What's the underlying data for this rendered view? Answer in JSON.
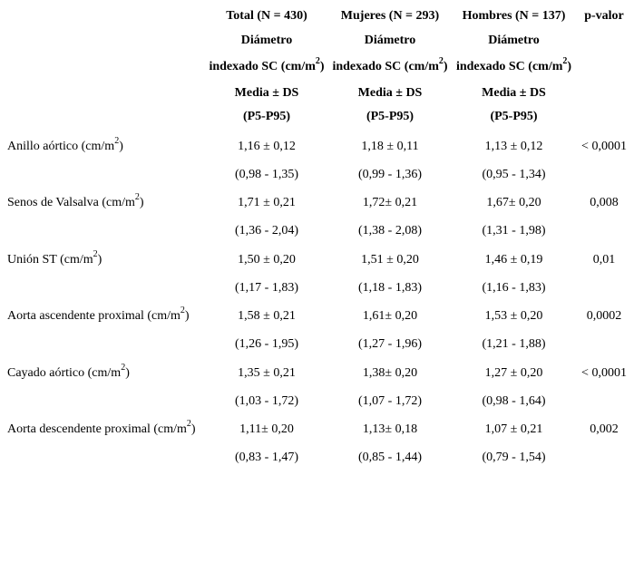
{
  "table": {
    "header": {
      "columns": [
        {
          "title": "Total (N = 430)"
        },
        {
          "title": "Mujeres (N = 293)"
        },
        {
          "title": "Hombres (N = 137)"
        },
        {
          "title": "p-valor"
        }
      ],
      "sub": {
        "diametro": "Diámetro",
        "indexado_pre": "indexado SC (cm/m",
        "indexado_sup": "2",
        "indexado_post": ")",
        "media": "Media ± DS",
        "p5p95": "(P5-P95)"
      }
    },
    "rows": [
      {
        "label_pre": "Anillo aórtico (cm/m",
        "label_sup": "2",
        "label_post": ")",
        "total_mean": "1,16 ± 0,12",
        "mujeres_mean": "1,18 ± 0,11",
        "hombres_mean": "1,13 ± 0,12",
        "p": "< 0,0001",
        "total_range": "(0,98 - 1,35)",
        "mujeres_range": "(0,99 - 1,36)",
        "hombres_range": "(0,95 - 1,34)"
      },
      {
        "label_pre": "Senos de Valsalva (cm/m",
        "label_sup": "2",
        "label_post": ")",
        "total_mean": "1,71 ± 0,21",
        "mujeres_mean": "1,72± 0,21",
        "hombres_mean": "1,67± 0,20",
        "p": "0,008",
        "total_range": "(1,36 - 2,04)",
        "mujeres_range": "(1,38 - 2,08)",
        "hombres_range": "(1,31 - 1,98)"
      },
      {
        "label_pre": "Unión ST (cm/m",
        "label_sup": "2",
        "label_post": ")",
        "total_mean": "1,50 ± 0,20",
        "mujeres_mean": "1,51 ± 0,20",
        "hombres_mean": "1,46 ± 0,19",
        "p": "0,01",
        "total_range": "(1,17 - 1,83)",
        "mujeres_range": "(1,18 - 1,83)",
        "hombres_range": "(1,16 - 1,83)"
      },
      {
        "label_pre": "Aorta ascendente proximal (cm/m",
        "label_sup": "2",
        "label_post": ")",
        "total_mean": "1,58 ± 0,21",
        "mujeres_mean": "1,61± 0,20",
        "hombres_mean": "1,53 ± 0,20",
        "p": "0,0002",
        "total_range": "(1,26 - 1,95)",
        "mujeres_range": "(1,27 - 1,96)",
        "hombres_range": "(1,21 - 1,88)"
      },
      {
        "label_pre": "Cayado aórtico (cm/m",
        "label_sup": "2",
        "label_post": ")",
        "total_mean": "1,35 ± 0,21",
        "mujeres_mean": "1,38± 0,20",
        "hombres_mean": "1,27 ± 0,20",
        "p": "< 0,0001",
        "total_range": "(1,03 - 1,72)",
        "mujeres_range": "(1,07 - 1,72)",
        "hombres_range": "(0,98 - 1,64)"
      },
      {
        "label_pre": "Aorta descendente proximal (cm/m",
        "label_sup": "2",
        "label_post": ")",
        "total_mean": "1,11± 0,20",
        "mujeres_mean": "1,13± 0,18",
        "hombres_mean": "1,07 ± 0,21",
        "p": "0,002",
        "total_range": "(0,83 - 1,47)",
        "mujeres_range": "(0,85 - 1,44)",
        "hombres_range": "(0,79 - 1,54)"
      }
    ]
  }
}
